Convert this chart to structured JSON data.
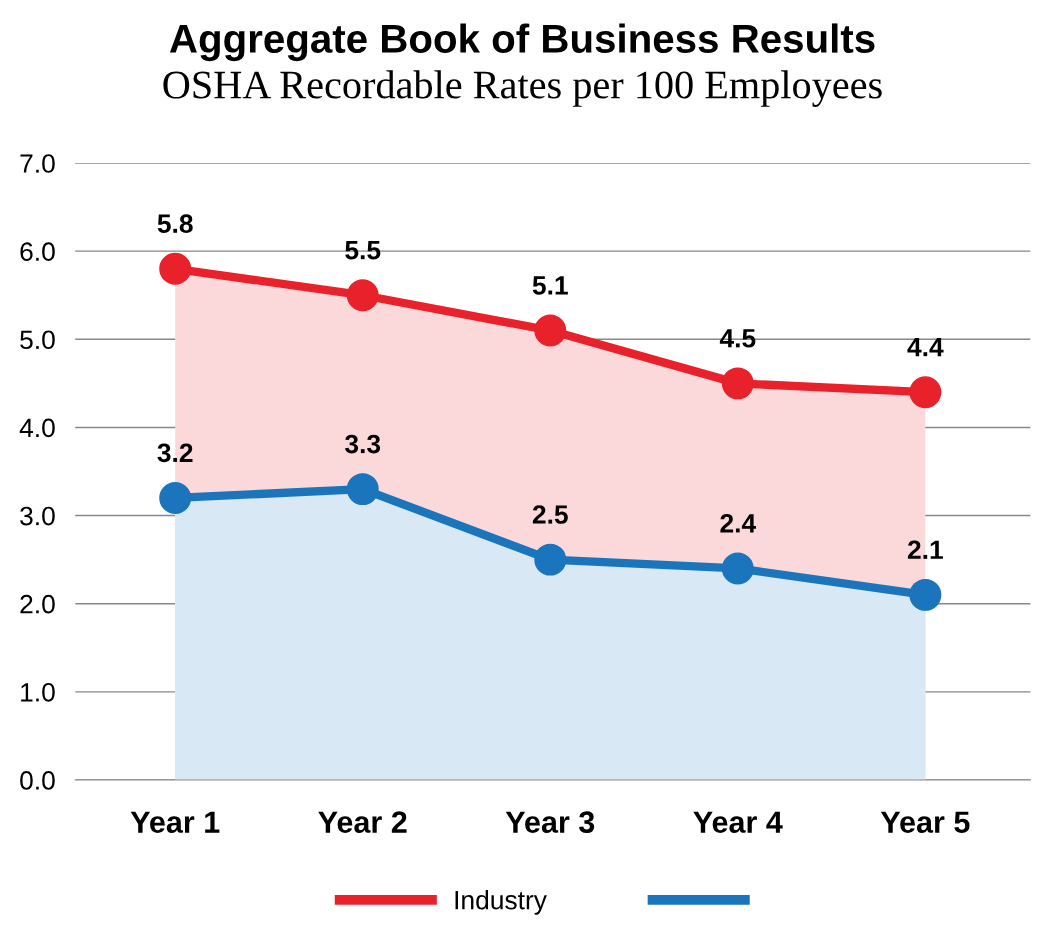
{
  "chart_data": {
    "type": "area",
    "title": "Aggregate Book of Business Results",
    "subtitle": "OSHA Recordable Rates per 100 Employees",
    "categories": [
      "Year 1",
      "Year 2",
      "Year 3",
      "Year 4",
      "Year 5"
    ],
    "series": [
      {
        "name": "Industry",
        "color": "#e8212b",
        "values": [
          5.8,
          5.5,
          5.1,
          4.5,
          4.4
        ]
      },
      {
        "color": "#1a75bc",
        "values": [
          3.2,
          3.3,
          2.5,
          2.4,
          2.1
        ]
      }
    ],
    "ylim": [
      0,
      7
    ],
    "yticks": [
      {
        "value": 0,
        "label": "0.0"
      },
      {
        "value": 1,
        "label": "1.0"
      },
      {
        "value": 2,
        "label": "2.0"
      },
      {
        "value": 3,
        "label": "3.0"
      },
      {
        "value": 4,
        "label": "4.0"
      },
      {
        "value": 5,
        "label": "5.0"
      },
      {
        "value": 6,
        "label": "6.0"
      },
      {
        "value": 7,
        "label": "7.0"
      }
    ],
    "grid": "y",
    "legend": "bottom",
    "marker": "circle",
    "line_style": "solid",
    "data_labels": true
  }
}
